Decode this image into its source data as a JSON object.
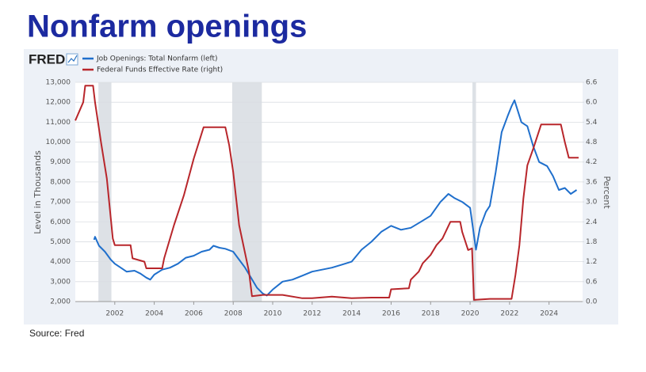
{
  "header": {
    "title": "Nonfarm openings"
  },
  "chart_data": {
    "type": "line",
    "logo": "FRED",
    "ylabel": "Level in Thousands",
    "y2label": "Percent",
    "xlim": [
      2000,
      2025.7
    ],
    "xticks": [
      2002,
      2004,
      2006,
      2008,
      2010,
      2012,
      2014,
      2016,
      2018,
      2020,
      2022,
      2024
    ],
    "ylim": [
      2000,
      13000
    ],
    "yticks": [
      {
        "value": 2000,
        "label": "2,000"
      },
      {
        "value": 3000,
        "label": "3,000"
      },
      {
        "value": 4000,
        "label": "4,000"
      },
      {
        "value": 5000,
        "label": "5,000"
      },
      {
        "value": 6000,
        "label": "6,000"
      },
      {
        "value": 7000,
        "label": "7,000"
      },
      {
        "value": 8000,
        "label": "8,000"
      },
      {
        "value": 9000,
        "label": "9,000"
      },
      {
        "value": 10000,
        "label": "10,000"
      },
      {
        "value": 11000,
        "label": "11,000"
      },
      {
        "value": 12000,
        "label": "12,000"
      },
      {
        "value": 13000,
        "label": "13,000"
      }
    ],
    "y2lim": [
      0,
      6.6
    ],
    "y2ticks": [
      {
        "value": 0,
        "label": "0.0"
      },
      0.6,
      1.2,
      1.8,
      2.4,
      {
        "value": 3,
        "label": "3.0"
      },
      3.6,
      4.2,
      4.8,
      5.4,
      {
        "value": 6,
        "label": "6.0"
      },
      6.6
    ],
    "grid": true,
    "recessions": [
      {
        "start": 2001.17,
        "end": 2001.83
      },
      {
        "start": 2007.95,
        "end": 2009.45
      },
      {
        "start": 2020.12,
        "end": 2020.3
      }
    ],
    "recession_color": "#dde1e6",
    "series": [
      {
        "name": "Job Openings: Total Nonfarm (left)",
        "color": "#1f6fcc",
        "axis": "y",
        "x": [
          2000.95,
          2001.0,
          2001.2,
          2001.5,
          2001.8,
          2002.0,
          2002.3,
          2002.6,
          2003.0,
          2003.3,
          2003.6,
          2003.8,
          2004.0,
          2004.4,
          2004.8,
          2005.2,
          2005.6,
          2006.0,
          2006.4,
          2006.8,
          2007.0,
          2007.3,
          2007.6,
          2008.0,
          2008.3,
          2008.6,
          2008.9,
          2009.2,
          2009.5,
          2009.7,
          2010.0,
          2010.5,
          2011.0,
          2011.5,
          2012.0,
          2012.5,
          2013.0,
          2013.5,
          2014.0,
          2014.5,
          2015.0,
          2015.5,
          2016.0,
          2016.5,
          2017.0,
          2017.5,
          2018.0,
          2018.5,
          2018.9,
          2019.2,
          2019.6,
          2020.0,
          2020.3,
          2020.5,
          2020.8,
          2021.0,
          2021.3,
          2021.6,
          2021.9,
          2022.1,
          2022.25,
          2022.6,
          2022.9,
          2023.2,
          2023.5,
          2023.9,
          2024.2,
          2024.5,
          2024.8,
          2025.1,
          2025.4
        ],
        "values": [
          5100,
          5250,
          4800,
          4500,
          4100,
          3900,
          3700,
          3500,
          3550,
          3400,
          3200,
          3100,
          3350,
          3600,
          3700,
          3900,
          4200,
          4300,
          4500,
          4600,
          4800,
          4700,
          4650,
          4500,
          4100,
          3700,
          3200,
          2700,
          2400,
          2300,
          2600,
          3000,
          3100,
          3300,
          3500,
          3600,
          3700,
          3850,
          4000,
          4600,
          5000,
          5500,
          5800,
          5600,
          5700,
          6000,
          6300,
          7000,
          7400,
          7200,
          7000,
          6700,
          4600,
          5700,
          6500,
          6800,
          8500,
          10500,
          11300,
          11800,
          12100,
          11000,
          10800,
          9800,
          9000,
          8800,
          8300,
          7600,
          7700,
          7400,
          7600
        ]
      },
      {
        "name": "Federal Funds Effective Rate (right)",
        "color": "#b8262b",
        "axis": "y2",
        "x": [
          2000.0,
          2000.4,
          2000.5,
          2000.9,
          2001.0,
          2001.3,
          2001.6,
          2001.9,
          2002.0,
          2002.8,
          2002.9,
          2003.5,
          2003.6,
          2004.4,
          2004.5,
          2005.0,
          2005.5,
          2006.0,
          2006.5,
          2007.6,
          2007.8,
          2008.0,
          2008.3,
          2008.8,
          2008.95,
          2009.5,
          2010.5,
          2011.5,
          2012.0,
          2013.0,
          2014.0,
          2015.0,
          2015.9,
          2016.0,
          2016.9,
          2017.0,
          2017.4,
          2017.6,
          2018.0,
          2018.3,
          2018.6,
          2019.0,
          2019.5,
          2019.6,
          2019.9,
          2020.1,
          2020.2,
          2021.0,
          2022.1,
          2022.3,
          2022.5,
          2022.7,
          2022.9,
          2023.2,
          2023.6,
          2024.6,
          2024.8,
          2025.0,
          2025.5
        ],
        "values": [
          5.45,
          6.0,
          6.5,
          6.5,
          6.0,
          4.8,
          3.7,
          1.9,
          1.7,
          1.7,
          1.3,
          1.2,
          1.0,
          1.0,
          1.3,
          2.3,
          3.2,
          4.3,
          5.25,
          5.25,
          4.7,
          3.9,
          2.3,
          0.9,
          0.16,
          0.2,
          0.2,
          0.1,
          0.1,
          0.15,
          0.1,
          0.12,
          0.12,
          0.37,
          0.4,
          0.66,
          0.9,
          1.15,
          1.4,
          1.7,
          1.9,
          2.4,
          2.4,
          2.1,
          1.55,
          1.6,
          0.05,
          0.08,
          0.08,
          0.8,
          1.7,
          3.1,
          4.1,
          4.6,
          5.33,
          5.33,
          4.8,
          4.33,
          4.33
        ]
      }
    ]
  },
  "footer": {
    "source": "Source: Fred"
  }
}
